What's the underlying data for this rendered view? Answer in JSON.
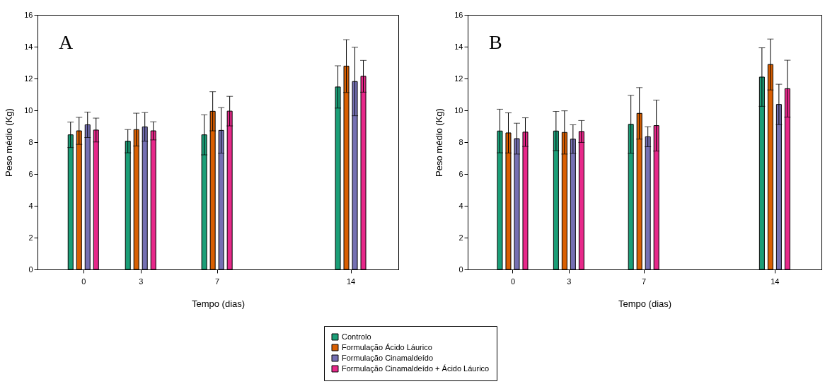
{
  "chart_data": [
    {
      "type": "bar",
      "xlabel": "Tempo (dias)",
      "ylabel": "Peso médio (Kg)",
      "annotations": [
        "A"
      ],
      "x": [
        0,
        3,
        7,
        14
      ],
      "xlim": [
        -2.4,
        16.5
      ],
      "xticks": [
        0,
        3,
        7,
        14
      ],
      "ylim": [
        0,
        16
      ],
      "yticks": [
        0,
        2,
        4,
        6,
        8,
        10,
        12,
        14,
        16
      ],
      "grid": false,
      "legend": "bottom",
      "series": [
        {
          "name": "Controlo",
          "color": "#1b9e77",
          "values": [
            8.46,
            8.06,
            8.46,
            11.47
          ],
          "errors": [
            0.8,
            0.73,
            1.26,
            1.33
          ]
        },
        {
          "name": "Formulação Ácido Láurico",
          "color": "#d95f02",
          "values": [
            8.71,
            8.79,
            9.94,
            12.78
          ],
          "errors": [
            0.85,
            1.03,
            1.23,
            1.66
          ]
        },
        {
          "name": "Formulação Cinamaldeído",
          "color": "#7570b3",
          "values": [
            9.09,
            8.96,
            8.74,
            11.81
          ],
          "errors": [
            0.8,
            0.9,
            1.43,
            2.15
          ]
        },
        {
          "name": "Formulação Cinamaldeído + Ácido Láurico",
          "color": "#e7298a",
          "values": [
            8.76,
            8.71,
            9.95,
            12.14
          ],
          "errors": [
            0.75,
            0.57,
            0.93,
            1.0
          ]
        }
      ]
    },
    {
      "type": "bar",
      "xlabel": "Tempo (dias)",
      "ylabel": "Peso médio (Kg)",
      "annotations": [
        "B"
      ],
      "x": [
        0,
        3,
        7,
        14
      ],
      "xlim": [
        -2.4,
        16.5
      ],
      "xticks": [
        0,
        3,
        7,
        14
      ],
      "ylim": [
        0,
        16
      ],
      "yticks": [
        0,
        2,
        4,
        6,
        8,
        10,
        12,
        14,
        16
      ],
      "grid": false,
      "legend": "bottom",
      "series": [
        {
          "name": "Controlo",
          "color": "#1b9e77",
          "values": [
            8.7,
            8.7,
            9.12,
            12.09
          ],
          "errors": [
            1.37,
            1.23,
            1.82,
            1.84
          ]
        },
        {
          "name": "Formulação Ácido Láurico",
          "color": "#d95f02",
          "values": [
            8.58,
            8.61,
            9.81,
            12.88
          ],
          "errors": [
            1.26,
            1.36,
            1.62,
            1.6
          ]
        },
        {
          "name": "Formulação Cinamaldeído",
          "color": "#7570b3",
          "values": [
            8.22,
            8.19,
            8.34,
            10.37
          ],
          "errors": [
            0.97,
            0.9,
            0.63,
            1.27
          ]
        },
        {
          "name": "Formulação Cinamaldeído + Ácido Láurico",
          "color": "#e7298a",
          "values": [
            8.63,
            8.67,
            9.04,
            11.36
          ],
          "errors": [
            0.9,
            0.69,
            1.6,
            1.79
          ]
        }
      ]
    }
  ]
}
